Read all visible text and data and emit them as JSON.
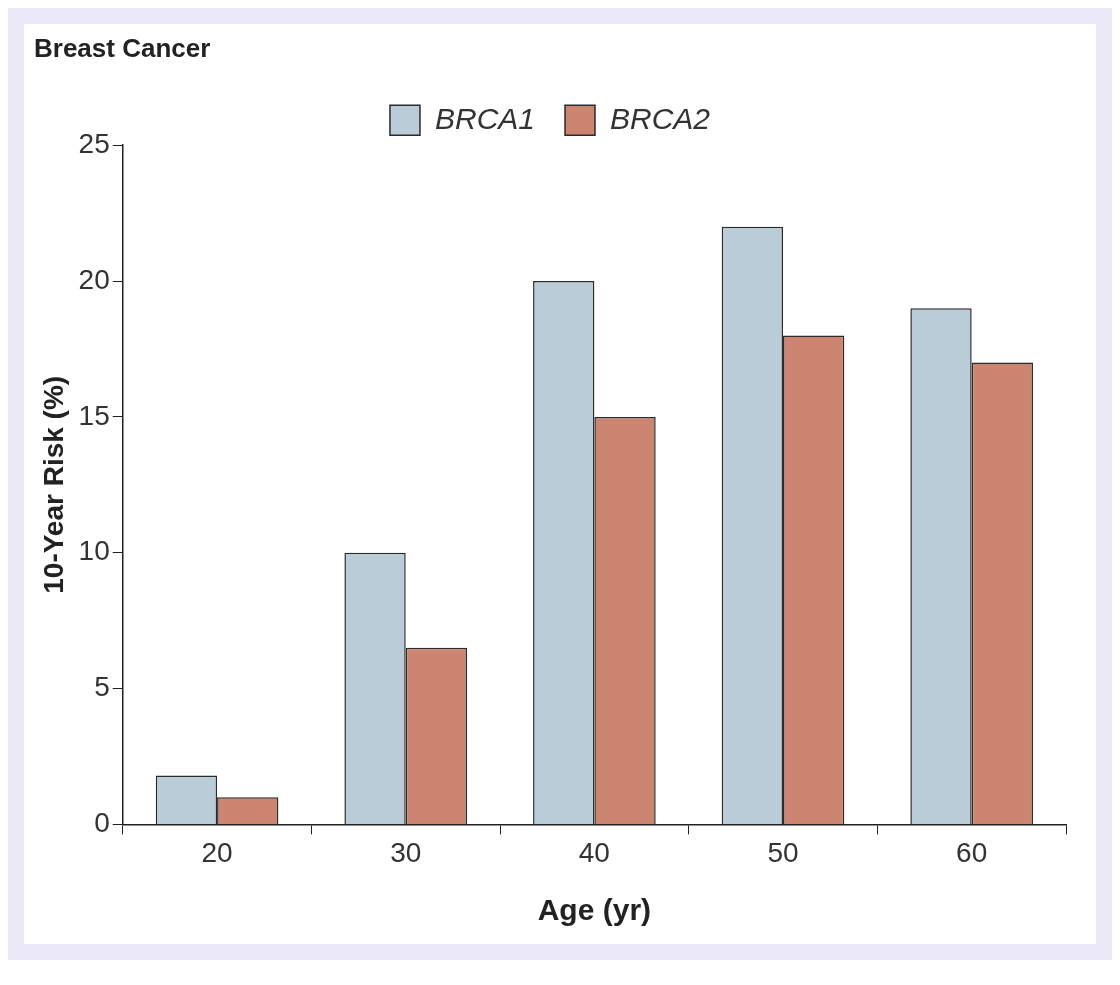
{
  "chart_data": {
    "type": "bar",
    "title": "Breast Cancer",
    "xlabel": "Age (yr)",
    "ylabel": "10-Year Risk (%)",
    "categories": [
      "20",
      "30",
      "40",
      "50",
      "60"
    ],
    "series": [
      {
        "name": "BRCA1",
        "color": "#b9ccd7",
        "values": [
          1.8,
          10,
          20,
          22,
          19
        ]
      },
      {
        "name": "BRCA2",
        "color": "#cc8570",
        "values": [
          1,
          6.5,
          15,
          18,
          17
        ]
      }
    ],
    "ylim": [
      0,
      25
    ],
    "yticks": [
      0,
      5,
      10,
      15,
      20,
      25
    ],
    "grid": false,
    "legend": "top"
  }
}
